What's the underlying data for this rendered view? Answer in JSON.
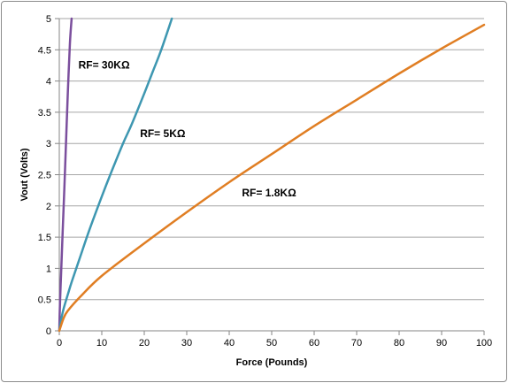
{
  "chart_data": {
    "type": "line",
    "title": "",
    "xlabel": "Force (Pounds)",
    "ylabel": "Vout (Volts)",
    "xlim": [
      0,
      100
    ],
    "ylim": [
      0,
      5
    ],
    "x_ticks": [
      "0",
      "10",
      "20",
      "30",
      "40",
      "50",
      "60",
      "70",
      "80",
      "90",
      "100"
    ],
    "y_ticks": [
      "0",
      "0.5",
      "1",
      "1.5",
      "2",
      "2.5",
      "3",
      "3.5",
      "4",
      "4.5",
      "5"
    ],
    "grid": "horizontal",
    "legend": "none",
    "series": [
      {
        "name": "RF= 30KΩ",
        "color": "#7b4f9d",
        "x": [
          0,
          0.1,
          0.3,
          0.5,
          0.8,
          1.2,
          1.6,
          2.0,
          2.5,
          2.9
        ],
        "y": [
          0,
          0.3,
          0.7,
          1.05,
          1.6,
          2.3,
          3.05,
          3.8,
          4.6,
          5.0
        ]
      },
      {
        "name": "RF= 5KΩ",
        "color": "#3e97b1",
        "x": [
          0,
          0.5,
          1,
          2,
          3,
          5,
          7,
          10,
          12,
          15,
          17,
          20,
          22,
          24,
          26.5
        ],
        "y": [
          0,
          0.2,
          0.35,
          0.58,
          0.8,
          1.2,
          1.6,
          2.15,
          2.5,
          3.0,
          3.3,
          3.8,
          4.15,
          4.5,
          5.0
        ]
      },
      {
        "name": "RF= 1.8KΩ",
        "color": "#e07e23",
        "x": [
          0,
          1,
          2,
          5,
          10,
          20,
          30,
          40,
          50,
          60,
          70,
          80,
          90,
          100
        ],
        "y": [
          0,
          0.2,
          0.32,
          0.55,
          0.88,
          1.4,
          1.9,
          2.38,
          2.83,
          3.28,
          3.7,
          4.12,
          4.52,
          4.9
        ]
      }
    ],
    "annotations": [
      {
        "text": "RF= 30KΩ",
        "x": 4.5,
        "y": 4.2
      },
      {
        "text": "RF= 5KΩ",
        "x": 19,
        "y": 3.1
      },
      {
        "text": "RF= 1.8KΩ",
        "x": 43,
        "y": 2.15
      }
    ]
  }
}
